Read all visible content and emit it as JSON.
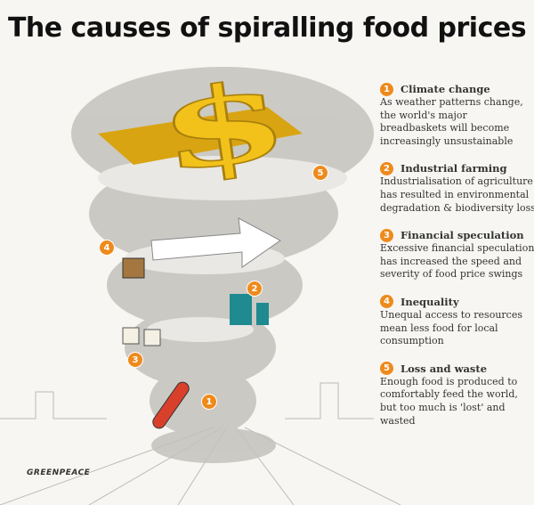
{
  "title": "The causes of spiralling food prices",
  "logo": "GREENPEACE",
  "colors": {
    "accent": "#ee8a1c",
    "dollar": "#f2c21b",
    "tornado": "#b9b7b1"
  },
  "causes": [
    {
      "number": "1",
      "heading": "Climate change",
      "text": "As weather patterns change, the world's major breadbaskets will become increasingly unsustainable"
    },
    {
      "number": "2",
      "heading": "Industrial farming",
      "text": "Industrialisation of agriculture has resulted in environmental degradation & biodiversity loss"
    },
    {
      "number": "3",
      "heading": "Financial speculation",
      "text": "Excessive financial speculation has increased the speed and severity of food price swings"
    },
    {
      "number": "4",
      "heading": "Inequality",
      "text": "Unequal access to resources mean less food for local consumption"
    },
    {
      "number": "5",
      "heading": "Loss and waste",
      "text": "Enough food is produced to comfortably feed the world, but too much is 'lost' and wasted"
    }
  ]
}
